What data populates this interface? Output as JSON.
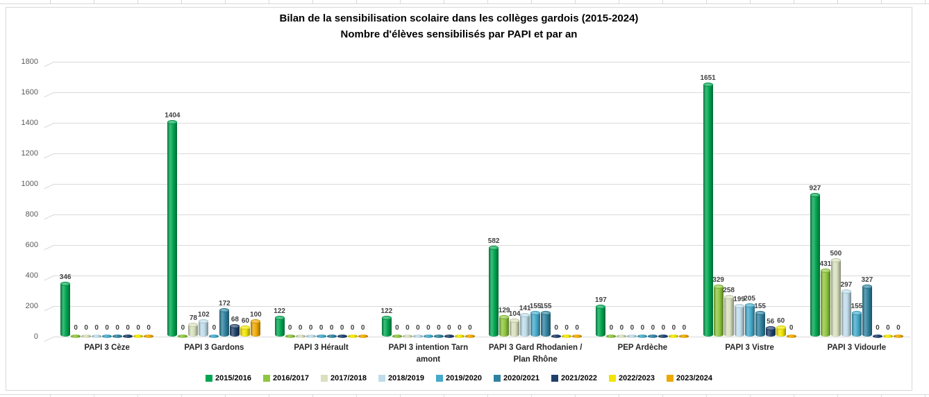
{
  "chart_data": {
    "type": "bar",
    "style": "3d-cylinder",
    "title_line1": "Bilan de la sensibilisation scolaire dans les collèges gardois (2015-2024)",
    "title_line2": "Nombre d'élèves sensibilisés par PAPI et par an",
    "ylim": [
      0,
      1800
    ],
    "yticks": [
      0,
      200,
      400,
      600,
      800,
      1000,
      1200,
      1400,
      1600,
      1800
    ],
    "grid": true,
    "legend_position": "bottom",
    "data_labels": true,
    "categories": [
      "PAPI 3 Cèze",
      "PAPI 3 Gardons",
      "PAPI 3 Hérault",
      "PAPI 3 intention Tarn amont",
      "PAPI 3 Gard Rhodanien / Plan Rhône",
      "PEP Ardèche",
      "PAPI 3 Vistre",
      "PAPI 3 Vidourle"
    ],
    "series": [
      {
        "name": "2015/2016",
        "color": "#00A650",
        "values": [
          346,
          1404,
          122,
          122,
          582,
          197,
          1651,
          927
        ]
      },
      {
        "name": "2016/2017",
        "color": "#8FC63F",
        "values": [
          0,
          0,
          0,
          0,
          129,
          0,
          329,
          431
        ]
      },
      {
        "name": "2017/2018",
        "color": "#D8E0BE",
        "values": [
          0,
          78,
          0,
          0,
          104,
          0,
          258,
          500
        ]
      },
      {
        "name": "2018/2019",
        "color": "#BFDCE9",
        "values": [
          0,
          102,
          0,
          0,
          141,
          0,
          199,
          297
        ]
      },
      {
        "name": "2019/2020",
        "color": "#45AACB",
        "values": [
          0,
          0,
          0,
          0,
          155,
          0,
          205,
          155
        ]
      },
      {
        "name": "2020/2021",
        "color": "#2F829F",
        "values": [
          0,
          172,
          0,
          0,
          155,
          0,
          155,
          327
        ]
      },
      {
        "name": "2021/2022",
        "color": "#20406B",
        "values": [
          0,
          68,
          0,
          0,
          0,
          0,
          56,
          0
        ]
      },
      {
        "name": "2022/2023",
        "color": "#F2E600",
        "values": [
          0,
          60,
          0,
          0,
          0,
          0,
          60,
          0
        ]
      },
      {
        "name": "2023/2024",
        "color": "#EEA800",
        "values": [
          0,
          100,
          0,
          0,
          0,
          0,
          0,
          0
        ]
      }
    ]
  }
}
